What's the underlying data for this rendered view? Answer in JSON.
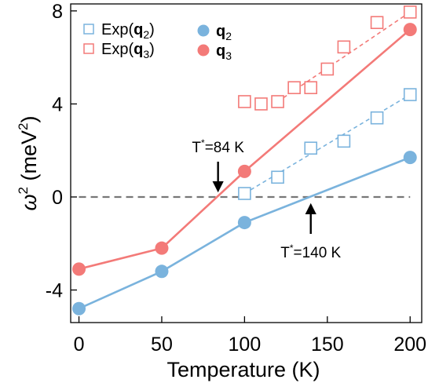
{
  "chart_data": {
    "type": "scatter",
    "xlabel": "Temperature (K)",
    "ylabel_symbol": "ω",
    "ylabel_sup": "2",
    "ylabel_unit_open": " (meV",
    "ylabel_unit_sup": "2",
    "ylabel_unit_close": ")",
    "xlim": [
      -5,
      207
    ],
    "ylim": [
      -5.4,
      8.3
    ],
    "xticks": [
      0,
      50,
      100,
      150,
      200
    ],
    "xtick_labels": [
      "0",
      "50",
      "100",
      "150",
      "200"
    ],
    "yticks": [
      -4,
      0,
      4,
      8
    ],
    "ytick_labels": [
      "-4",
      "0",
      "4",
      "8"
    ],
    "grid": false,
    "legend": {
      "placement": "top-left",
      "entries": [
        {
          "key": "exp_q2",
          "pre": "Exp(",
          "bold": "q",
          "sub": "2",
          "post": ")"
        },
        {
          "key": "exp_q3",
          "pre": "Exp(",
          "bold": "q",
          "sub": "3",
          "post": ")"
        },
        {
          "key": "q2",
          "pre": "",
          "bold": "q",
          "sub": "2",
          "post": ""
        },
        {
          "key": "q3",
          "pre": "",
          "bold": "q",
          "sub": "3",
          "post": ""
        }
      ]
    },
    "colors": {
      "blue": "#7ab3dd",
      "red": "#f37a78",
      "zero_line": "#777777"
    },
    "series": [
      {
        "key": "exp_q2",
        "marker": "square-open",
        "line": "dashed-fit",
        "color": "#7ab3dd",
        "points": [
          [
            100,
            0.15
          ],
          [
            120,
            0.85
          ],
          [
            140,
            2.1
          ],
          [
            160,
            2.4
          ],
          [
            180,
            3.4
          ],
          [
            200,
            4.4
          ]
        ],
        "fit": [
          [
            100,
            0.15
          ],
          [
            200,
            4.4
          ]
        ]
      },
      {
        "key": "exp_q3",
        "marker": "square-open",
        "line": "dashed-fit",
        "color": "#f37a78",
        "points": [
          [
            100,
            4.1
          ],
          [
            110,
            4.0
          ],
          [
            120,
            4.1
          ],
          [
            130,
            4.7
          ],
          [
            140,
            4.7
          ],
          [
            150,
            5.5
          ],
          [
            160,
            6.45
          ],
          [
            180,
            7.5
          ],
          [
            200,
            7.95
          ]
        ],
        "fit": [
          [
            120,
            4.1
          ],
          [
            200,
            7.95
          ]
        ]
      },
      {
        "key": "q2",
        "marker": "circle-filled",
        "line": "solid-segments",
        "color": "#7ab3dd",
        "points": [
          [
            0,
            -4.8
          ],
          [
            50,
            -3.2
          ],
          [
            100,
            -1.1
          ],
          [
            200,
            1.7
          ]
        ]
      },
      {
        "key": "q3",
        "marker": "circle-filled",
        "line": "solid-segments",
        "color": "#f37a78",
        "points": [
          [
            0,
            -3.1
          ],
          [
            50,
            -2.2
          ],
          [
            100,
            1.1
          ],
          [
            200,
            7.2
          ]
        ]
      }
    ],
    "reference_line": {
      "y": 0,
      "x_from": 0,
      "x_to": 200,
      "style": "dashed"
    },
    "annotations": [
      {
        "label_pre": "T",
        "label_sup": "*",
        "label_post": "=84 K",
        "x": 84,
        "direction": "down"
      },
      {
        "label_pre": "T",
        "label_sup": "*",
        "label_post": "=140 K",
        "x": 140,
        "direction": "up"
      }
    ]
  }
}
